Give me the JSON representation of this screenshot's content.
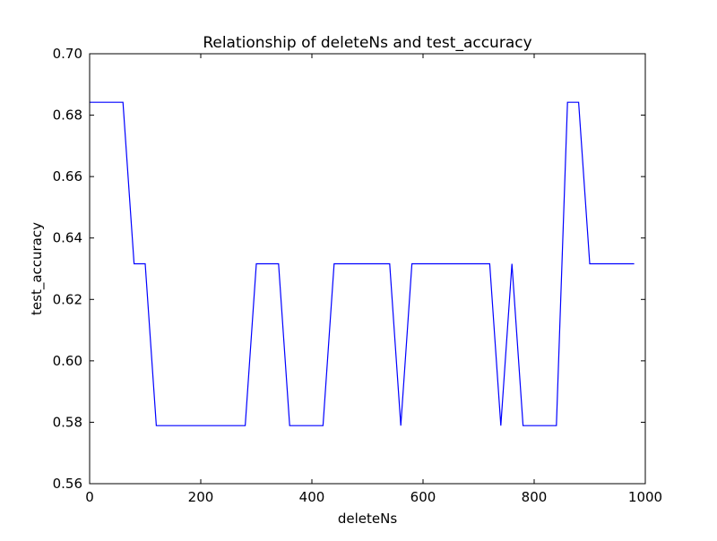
{
  "chart_data": {
    "type": "line",
    "title": "Relationship of deleteNs and test_accuracy",
    "xlabel": "deleteNs",
    "ylabel": "test_accuracy",
    "xlim": [
      0,
      1000
    ],
    "ylim": [
      0.56,
      0.7
    ],
    "xticks": [
      0,
      200,
      400,
      600,
      800,
      1000
    ],
    "yticks": [
      0.56,
      0.58,
      0.6,
      0.62,
      0.64,
      0.66,
      0.68,
      0.7
    ],
    "xtick_labels": [
      "0",
      "200",
      "400",
      "600",
      "800",
      "1000"
    ],
    "ytick_labels": [
      "0.56",
      "0.58",
      "0.60",
      "0.62",
      "0.64",
      "0.66",
      "0.68",
      "0.70"
    ],
    "grid": false,
    "series": [
      {
        "color": "#0000ff",
        "x": [
          0,
          20,
          40,
          60,
          80,
          100,
          120,
          140,
          160,
          180,
          200,
          220,
          240,
          260,
          280,
          300,
          320,
          340,
          360,
          380,
          400,
          420,
          440,
          460,
          480,
          500,
          520,
          540,
          560,
          580,
          600,
          620,
          640,
          660,
          680,
          700,
          720,
          740,
          760,
          780,
          800,
          820,
          840,
          860,
          880,
          900,
          920,
          940,
          960,
          980
        ],
        "y": [
          0.6842,
          0.6842,
          0.6842,
          0.6842,
          0.6316,
          0.6316,
          0.5789,
          0.5789,
          0.5789,
          0.5789,
          0.5789,
          0.5789,
          0.5789,
          0.5789,
          0.5789,
          0.6316,
          0.6316,
          0.6316,
          0.5789,
          0.5789,
          0.5789,
          0.5789,
          0.6316,
          0.6316,
          0.6316,
          0.6316,
          0.6316,
          0.6316,
          0.5789,
          0.6316,
          0.6316,
          0.6316,
          0.6316,
          0.6316,
          0.6316,
          0.6316,
          0.6316,
          0.5789,
          0.6316,
          0.5789,
          0.5789,
          0.5789,
          0.5789,
          0.6842,
          0.6842,
          0.6316,
          0.6316,
          0.6316,
          0.6316,
          0.6316
        ]
      }
    ]
  }
}
